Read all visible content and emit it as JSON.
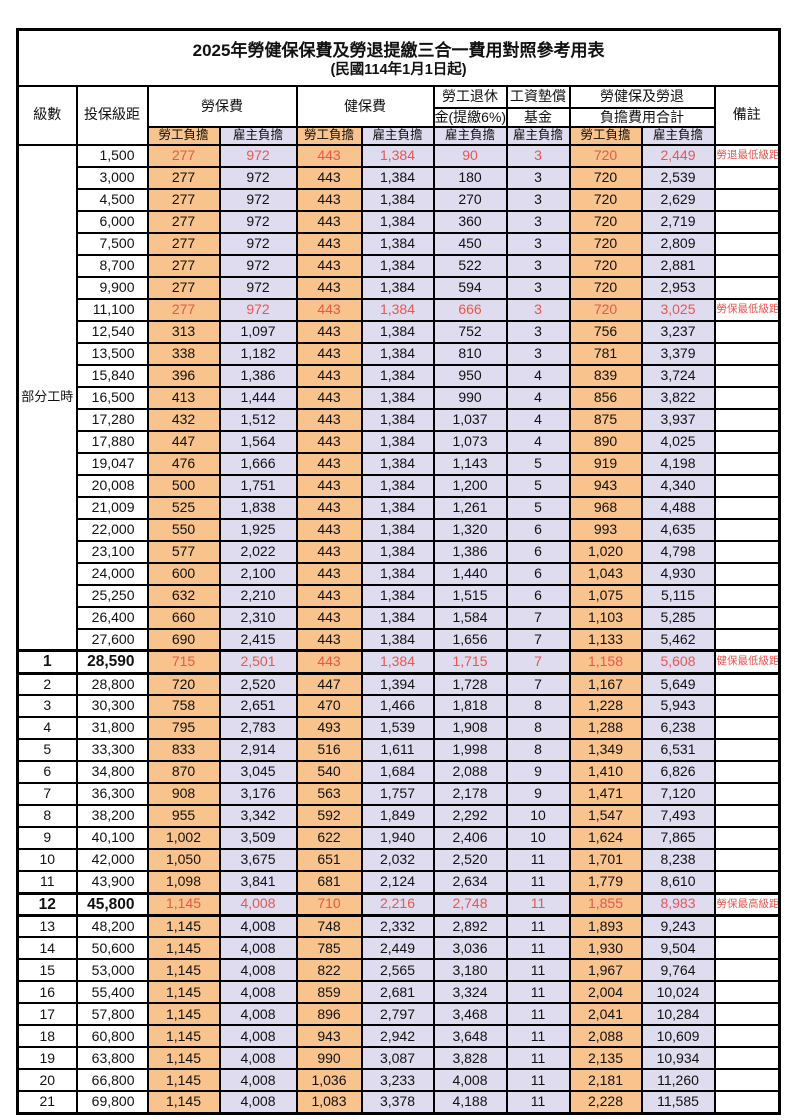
{
  "title": "2025年勞健保保費及勞退提繳三合一費用對照參考用表",
  "subtitle": "(民國114年1月1日起)",
  "colors": {
    "employee_share_bg": "#F8C38D",
    "employer_share_bg": "#DEDCEE",
    "highlight_text": "#E9564D",
    "grid_line": "#000000"
  },
  "header": {
    "level": "級數",
    "bracket": "投保級距",
    "labor_insurance": "勞保費",
    "health_insurance": "健保費",
    "pension_line1": "勞工退休",
    "pension_line2": "金(提繳6%)",
    "wage_fund_line1": "工資墊償",
    "wage_fund_line2": "基金",
    "total_line1": "勞健保及勞退",
    "total_line2": "負擔費用合計",
    "remark": "備註",
    "employee_share": "勞工負擔",
    "employer_share": "雇主負擔"
  },
  "part_time_label": "部分工時",
  "part_time_rowspan": 23,
  "rows": [
    {
      "level": "",
      "bracket": "1,500",
      "labor_emp": "277",
      "labor_er": "972",
      "health_emp": "443",
      "health_er": "1,384",
      "pension": "90",
      "wage_fund": "3",
      "total_emp": "720",
      "total_er": "2,449",
      "note": "勞退最低級距",
      "red": true,
      "em": false
    },
    {
      "level": "",
      "bracket": "3,000",
      "labor_emp": "277",
      "labor_er": "972",
      "health_emp": "443",
      "health_er": "1,384",
      "pension": "180",
      "wage_fund": "3",
      "total_emp": "720",
      "total_er": "2,539",
      "note": "",
      "red": false,
      "em": false
    },
    {
      "level": "",
      "bracket": "4,500",
      "labor_emp": "277",
      "labor_er": "972",
      "health_emp": "443",
      "health_er": "1,384",
      "pension": "270",
      "wage_fund": "3",
      "total_emp": "720",
      "total_er": "2,629",
      "note": "",
      "red": false,
      "em": false
    },
    {
      "level": "",
      "bracket": "6,000",
      "labor_emp": "277",
      "labor_er": "972",
      "health_emp": "443",
      "health_er": "1,384",
      "pension": "360",
      "wage_fund": "3",
      "total_emp": "720",
      "total_er": "2,719",
      "note": "",
      "red": false,
      "em": false
    },
    {
      "level": "",
      "bracket": "7,500",
      "labor_emp": "277",
      "labor_er": "972",
      "health_emp": "443",
      "health_er": "1,384",
      "pension": "450",
      "wage_fund": "3",
      "total_emp": "720",
      "total_er": "2,809",
      "note": "",
      "red": false,
      "em": false
    },
    {
      "level": "",
      "bracket": "8,700",
      "labor_emp": "277",
      "labor_er": "972",
      "health_emp": "443",
      "health_er": "1,384",
      "pension": "522",
      "wage_fund": "3",
      "total_emp": "720",
      "total_er": "2,881",
      "note": "",
      "red": false,
      "em": false
    },
    {
      "level": "",
      "bracket": "9,900",
      "labor_emp": "277",
      "labor_er": "972",
      "health_emp": "443",
      "health_er": "1,384",
      "pension": "594",
      "wage_fund": "3",
      "total_emp": "720",
      "total_er": "2,953",
      "note": "",
      "red": false,
      "em": false
    },
    {
      "level": "",
      "bracket": "11,100",
      "labor_emp": "277",
      "labor_er": "972",
      "health_emp": "443",
      "health_er": "1,384",
      "pension": "666",
      "wage_fund": "3",
      "total_emp": "720",
      "total_er": "3,025",
      "note": "勞保最低級距",
      "red": true,
      "em": false
    },
    {
      "level": "",
      "bracket": "12,540",
      "labor_emp": "313",
      "labor_er": "1,097",
      "health_emp": "443",
      "health_er": "1,384",
      "pension": "752",
      "wage_fund": "3",
      "total_emp": "756",
      "total_er": "3,237",
      "note": "",
      "red": false,
      "em": false
    },
    {
      "level": "",
      "bracket": "13,500",
      "labor_emp": "338",
      "labor_er": "1,182",
      "health_emp": "443",
      "health_er": "1,384",
      "pension": "810",
      "wage_fund": "3",
      "total_emp": "781",
      "total_er": "3,379",
      "note": "",
      "red": false,
      "em": false
    },
    {
      "level": "",
      "bracket": "15,840",
      "labor_emp": "396",
      "labor_er": "1,386",
      "health_emp": "443",
      "health_er": "1,384",
      "pension": "950",
      "wage_fund": "4",
      "total_emp": "839",
      "total_er": "3,724",
      "note": "",
      "red": false,
      "em": false
    },
    {
      "level": "",
      "bracket": "16,500",
      "labor_emp": "413",
      "labor_er": "1,444",
      "health_emp": "443",
      "health_er": "1,384",
      "pension": "990",
      "wage_fund": "4",
      "total_emp": "856",
      "total_er": "3,822",
      "note": "",
      "red": false,
      "em": false
    },
    {
      "level": "",
      "bracket": "17,280",
      "labor_emp": "432",
      "labor_er": "1,512",
      "health_emp": "443",
      "health_er": "1,384",
      "pension": "1,037",
      "wage_fund": "4",
      "total_emp": "875",
      "total_er": "3,937",
      "note": "",
      "red": false,
      "em": false
    },
    {
      "level": "",
      "bracket": "17,880",
      "labor_emp": "447",
      "labor_er": "1,564",
      "health_emp": "443",
      "health_er": "1,384",
      "pension": "1,073",
      "wage_fund": "4",
      "total_emp": "890",
      "total_er": "4,025",
      "note": "",
      "red": false,
      "em": false
    },
    {
      "level": "",
      "bracket": "19,047",
      "labor_emp": "476",
      "labor_er": "1,666",
      "health_emp": "443",
      "health_er": "1,384",
      "pension": "1,143",
      "wage_fund": "5",
      "total_emp": "919",
      "total_er": "4,198",
      "note": "",
      "red": false,
      "em": false
    },
    {
      "level": "",
      "bracket": "20,008",
      "labor_emp": "500",
      "labor_er": "1,751",
      "health_emp": "443",
      "health_er": "1,384",
      "pension": "1,200",
      "wage_fund": "5",
      "total_emp": "943",
      "total_er": "4,340",
      "note": "",
      "red": false,
      "em": false
    },
    {
      "level": "",
      "bracket": "21,009",
      "labor_emp": "525",
      "labor_er": "1,838",
      "health_emp": "443",
      "health_er": "1,384",
      "pension": "1,261",
      "wage_fund": "5",
      "total_emp": "968",
      "total_er": "4,488",
      "note": "",
      "red": false,
      "em": false
    },
    {
      "level": "",
      "bracket": "22,000",
      "labor_emp": "550",
      "labor_er": "1,925",
      "health_emp": "443",
      "health_er": "1,384",
      "pension": "1,320",
      "wage_fund": "6",
      "total_emp": "993",
      "total_er": "4,635",
      "note": "",
      "red": false,
      "em": false
    },
    {
      "level": "",
      "bracket": "23,100",
      "labor_emp": "577",
      "labor_er": "2,022",
      "health_emp": "443",
      "health_er": "1,384",
      "pension": "1,386",
      "wage_fund": "6",
      "total_emp": "1,020",
      "total_er": "4,798",
      "note": "",
      "red": false,
      "em": false
    },
    {
      "level": "",
      "bracket": "24,000",
      "labor_emp": "600",
      "labor_er": "2,100",
      "health_emp": "443",
      "health_er": "1,384",
      "pension": "1,440",
      "wage_fund": "6",
      "total_emp": "1,043",
      "total_er": "4,930",
      "note": "",
      "red": false,
      "em": false
    },
    {
      "level": "",
      "bracket": "25,250",
      "labor_emp": "632",
      "labor_er": "2,210",
      "health_emp": "443",
      "health_er": "1,384",
      "pension": "1,515",
      "wage_fund": "6",
      "total_emp": "1,075",
      "total_er": "5,115",
      "note": "",
      "red": false,
      "em": false
    },
    {
      "level": "",
      "bracket": "26,400",
      "labor_emp": "660",
      "labor_er": "2,310",
      "health_emp": "443",
      "health_er": "1,384",
      "pension": "1,584",
      "wage_fund": "7",
      "total_emp": "1,103",
      "total_er": "5,285",
      "note": "",
      "red": false,
      "em": false
    },
    {
      "level": "",
      "bracket": "27,600",
      "labor_emp": "690",
      "labor_er": "2,415",
      "health_emp": "443",
      "health_er": "1,384",
      "pension": "1,656",
      "wage_fund": "7",
      "total_emp": "1,133",
      "total_er": "5,462",
      "note": "",
      "red": false,
      "em": false
    },
    {
      "level": "1",
      "bracket": "28,590",
      "labor_emp": "715",
      "labor_er": "2,501",
      "health_emp": "443",
      "health_er": "1,384",
      "pension": "1,715",
      "wage_fund": "7",
      "total_emp": "1,158",
      "total_er": "5,608",
      "note": "健保最低級距",
      "red": true,
      "em": true
    },
    {
      "level": "2",
      "bracket": "28,800",
      "labor_emp": "720",
      "labor_er": "2,520",
      "health_emp": "447",
      "health_er": "1,394",
      "pension": "1,728",
      "wage_fund": "7",
      "total_emp": "1,167",
      "total_er": "5,649",
      "note": "",
      "red": false,
      "em": false
    },
    {
      "level": "3",
      "bracket": "30,300",
      "labor_emp": "758",
      "labor_er": "2,651",
      "health_emp": "470",
      "health_er": "1,466",
      "pension": "1,818",
      "wage_fund": "8",
      "total_emp": "1,228",
      "total_er": "5,943",
      "note": "",
      "red": false,
      "em": false
    },
    {
      "level": "4",
      "bracket": "31,800",
      "labor_emp": "795",
      "labor_er": "2,783",
      "health_emp": "493",
      "health_er": "1,539",
      "pension": "1,908",
      "wage_fund": "8",
      "total_emp": "1,288",
      "total_er": "6,238",
      "note": "",
      "red": false,
      "em": false
    },
    {
      "level": "5",
      "bracket": "33,300",
      "labor_emp": "833",
      "labor_er": "2,914",
      "health_emp": "516",
      "health_er": "1,611",
      "pension": "1,998",
      "wage_fund": "8",
      "total_emp": "1,349",
      "total_er": "6,531",
      "note": "",
      "red": false,
      "em": false
    },
    {
      "level": "6",
      "bracket": "34,800",
      "labor_emp": "870",
      "labor_er": "3,045",
      "health_emp": "540",
      "health_er": "1,684",
      "pension": "2,088",
      "wage_fund": "9",
      "total_emp": "1,410",
      "total_er": "6,826",
      "note": "",
      "red": false,
      "em": false
    },
    {
      "level": "7",
      "bracket": "36,300",
      "labor_emp": "908",
      "labor_er": "3,176",
      "health_emp": "563",
      "health_er": "1,757",
      "pension": "2,178",
      "wage_fund": "9",
      "total_emp": "1,471",
      "total_er": "7,120",
      "note": "",
      "red": false,
      "em": false
    },
    {
      "level": "8",
      "bracket": "38,200",
      "labor_emp": "955",
      "labor_er": "3,342",
      "health_emp": "592",
      "health_er": "1,849",
      "pension": "2,292",
      "wage_fund": "10",
      "total_emp": "1,547",
      "total_er": "7,493",
      "note": "",
      "red": false,
      "em": false
    },
    {
      "level": "9",
      "bracket": "40,100",
      "labor_emp": "1,002",
      "labor_er": "3,509",
      "health_emp": "622",
      "health_er": "1,940",
      "pension": "2,406",
      "wage_fund": "10",
      "total_emp": "1,624",
      "total_er": "7,865",
      "note": "",
      "red": false,
      "em": false
    },
    {
      "level": "10",
      "bracket": "42,000",
      "labor_emp": "1,050",
      "labor_er": "3,675",
      "health_emp": "651",
      "health_er": "2,032",
      "pension": "2,520",
      "wage_fund": "11",
      "total_emp": "1,701",
      "total_er": "8,238",
      "note": "",
      "red": false,
      "em": false
    },
    {
      "level": "11",
      "bracket": "43,900",
      "labor_emp": "1,098",
      "labor_er": "3,841",
      "health_emp": "681",
      "health_er": "2,124",
      "pension": "2,634",
      "wage_fund": "11",
      "total_emp": "1,779",
      "total_er": "8,610",
      "note": "",
      "red": false,
      "em": false
    },
    {
      "level": "12",
      "bracket": "45,800",
      "labor_emp": "1,145",
      "labor_er": "4,008",
      "health_emp": "710",
      "health_er": "2,216",
      "pension": "2,748",
      "wage_fund": "11",
      "total_emp": "1,855",
      "total_er": "8,983",
      "note": "勞保最高級距",
      "red": true,
      "em": true
    },
    {
      "level": "13",
      "bracket": "48,200",
      "labor_emp": "1,145",
      "labor_er": "4,008",
      "health_emp": "748",
      "health_er": "2,332",
      "pension": "2,892",
      "wage_fund": "11",
      "total_emp": "1,893",
      "total_er": "9,243",
      "note": "",
      "red": false,
      "em": false
    },
    {
      "level": "14",
      "bracket": "50,600",
      "labor_emp": "1,145",
      "labor_er": "4,008",
      "health_emp": "785",
      "health_er": "2,449",
      "pension": "3,036",
      "wage_fund": "11",
      "total_emp": "1,930",
      "total_er": "9,504",
      "note": "",
      "red": false,
      "em": false
    },
    {
      "level": "15",
      "bracket": "53,000",
      "labor_emp": "1,145",
      "labor_er": "4,008",
      "health_emp": "822",
      "health_er": "2,565",
      "pension": "3,180",
      "wage_fund": "11",
      "total_emp": "1,967",
      "total_er": "9,764",
      "note": "",
      "red": false,
      "em": false
    },
    {
      "level": "16",
      "bracket": "55,400",
      "labor_emp": "1,145",
      "labor_er": "4,008",
      "health_emp": "859",
      "health_er": "2,681",
      "pension": "3,324",
      "wage_fund": "11",
      "total_emp": "2,004",
      "total_er": "10,024",
      "note": "",
      "red": false,
      "em": false
    },
    {
      "level": "17",
      "bracket": "57,800",
      "labor_emp": "1,145",
      "labor_er": "4,008",
      "health_emp": "896",
      "health_er": "2,797",
      "pension": "3,468",
      "wage_fund": "11",
      "total_emp": "2,041",
      "total_er": "10,284",
      "note": "",
      "red": false,
      "em": false
    },
    {
      "level": "18",
      "bracket": "60,800",
      "labor_emp": "1,145",
      "labor_er": "4,008",
      "health_emp": "943",
      "health_er": "2,942",
      "pension": "3,648",
      "wage_fund": "11",
      "total_emp": "2,088",
      "total_er": "10,609",
      "note": "",
      "red": false,
      "em": false
    },
    {
      "level": "19",
      "bracket": "63,800",
      "labor_emp": "1,145",
      "labor_er": "4,008",
      "health_emp": "990",
      "health_er": "3,087",
      "pension": "3,828",
      "wage_fund": "11",
      "total_emp": "2,135",
      "total_er": "10,934",
      "note": "",
      "red": false,
      "em": false
    },
    {
      "level": "20",
      "bracket": "66,800",
      "labor_emp": "1,145",
      "labor_er": "4,008",
      "health_emp": "1,036",
      "health_er": "3,233",
      "pension": "4,008",
      "wage_fund": "11",
      "total_emp": "2,181",
      "total_er": "11,260",
      "note": "",
      "red": false,
      "em": false
    },
    {
      "level": "21",
      "bracket": "69,800",
      "labor_emp": "1,145",
      "labor_er": "4,008",
      "health_emp": "1,083",
      "health_er": "3,378",
      "pension": "4,188",
      "wage_fund": "11",
      "total_emp": "2,228",
      "total_er": "11,585",
      "note": "",
      "red": false,
      "em": false
    }
  ]
}
